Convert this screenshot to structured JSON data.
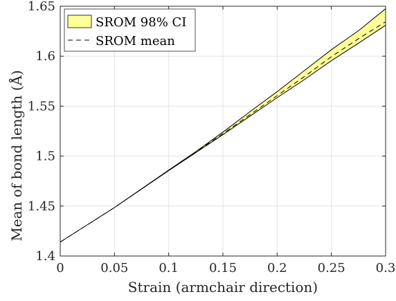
{
  "chart_data": {
    "type": "area",
    "title": "",
    "xlabel": "Strain (armchair direction)",
    "ylabel": "Mean of bond length (Å)",
    "xlim": [
      0,
      0.3
    ],
    "ylim": [
      1.4,
      1.65
    ],
    "grid": true,
    "legend_position": "top-left",
    "x_ticks": [
      0,
      0.05,
      0.1,
      0.15,
      0.2,
      0.25,
      0.3
    ],
    "x_tick_labels": [
      "0",
      "0.05",
      "0.1",
      "0.15",
      "0.2",
      "0.25",
      "0.3"
    ],
    "y_ticks": [
      1.4,
      1.45,
      1.5,
      1.55,
      1.6,
      1.65
    ],
    "y_tick_labels": [
      "1.4",
      "1.45",
      "1.5",
      "1.55",
      "1.6",
      "1.65"
    ],
    "x": [
      0,
      0.05,
      0.1,
      0.125,
      0.15,
      0.175,
      0.2,
      0.225,
      0.25,
      0.275,
      0.3
    ],
    "series": [
      {
        "name": "SROM 98% CI",
        "type": "band",
        "color": "#ffff99",
        "edge_color": "#000000",
        "lower": [
          1.414,
          1.4485,
          1.4855,
          1.5035,
          1.5215,
          1.54,
          1.5585,
          1.5765,
          1.5955,
          1.613,
          1.631
        ],
        "upper": [
          1.414,
          1.4485,
          1.486,
          1.5045,
          1.524,
          1.5445,
          1.5645,
          1.5855,
          1.6065,
          1.6255,
          1.6475
        ]
      },
      {
        "name": "SROM mean",
        "type": "line",
        "style": "dashed",
        "color": "#000000",
        "values": [
          1.414,
          1.4485,
          1.4857,
          1.504,
          1.5225,
          1.5415,
          1.5605,
          1.5795,
          1.5995,
          1.6175,
          1.6345
        ]
      }
    ]
  }
}
